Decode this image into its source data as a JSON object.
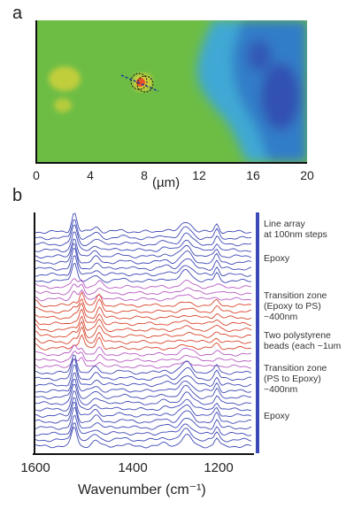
{
  "figure": {
    "panel_a_label": "a",
    "panel_b_label": "b"
  },
  "map": {
    "x_axis_label": "(µm)",
    "x_ticks": [
      "0",
      "4",
      "8",
      "12",
      "16",
      "20"
    ],
    "colors": {
      "background": "#6dbd45",
      "blue_region": "#3fa8d4",
      "dark_blue": "#2f4fb0",
      "yellow": "#d8d23a",
      "orange_red": "#e8512a",
      "line_marker": "#1f3f9a",
      "circle_marker": "#111111"
    }
  },
  "chart_data": [
    {
      "type": "line",
      "x_range": [
        1600,
        1100
      ],
      "x_ticks": [
        "1600",
        "1400",
        "1200"
      ],
      "xlabel": "Wavenumber (cm⁻¹)",
      "ylabel": "",
      "grid": false,
      "trace_count": 36,
      "trace_groups": [
        {
          "region": "epoxy",
          "traces": 9,
          "color": "#3f4ab5"
        },
        {
          "region": "transition_epoxy_to_ps",
          "traces": 3,
          "color": "#b85cc2"
        },
        {
          "region": "polystyrene",
          "traces": 8,
          "color": "#d9472f"
        },
        {
          "region": "transition_ps_to_epoxy",
          "traces": 3,
          "color": "#b85cc2"
        },
        {
          "region": "epoxy",
          "traces": 13,
          "color": "#3f4ab5"
        }
      ],
      "epoxy_peaks_cm-1": [
        1510,
        1460,
        1250,
        1180
      ],
      "polystyrene_peaks_cm-1": [
        1600,
        1493,
        1452,
        1180
      ]
    }
  ],
  "annotations": {
    "line_array": [
      "Line array",
      "at 100nm steps"
    ],
    "epoxy_top": [
      "Epoxy"
    ],
    "transition_1": [
      "Transition zone",
      "(Epoxy to PS)",
      "~400nm"
    ],
    "beads": [
      "Two polystyrene",
      "beads (each ~1um"
    ],
    "transition_2": [
      "Transition zone",
      "(PS to Epoxy)",
      "~400nm"
    ],
    "epoxy_bottom": [
      "Epoxy"
    ]
  }
}
